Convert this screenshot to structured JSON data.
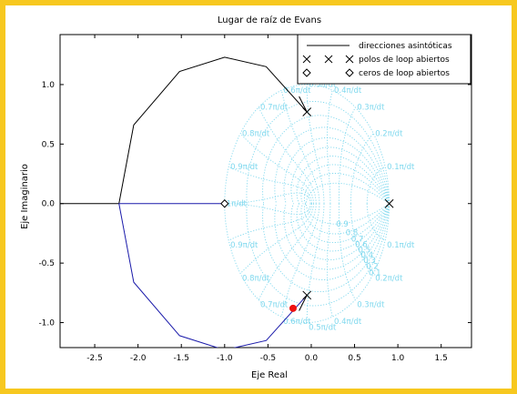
{
  "chart_data": {
    "type": "line",
    "title": "Lugar de raíz de Evans",
    "xlabel": "Eje Real",
    "ylabel": "Eje Imaginario",
    "xlim": [
      -2.9,
      1.85
    ],
    "ylim": [
      -1.21,
      1.42
    ],
    "xticks": [
      "-2.5",
      "-2.0",
      "-1.5",
      "-1.0",
      "-0.5",
      "0.0",
      "0.5",
      "1.0",
      "1.5"
    ],
    "xtick_values": [
      -2.5,
      -2.0,
      -1.5,
      -1.0,
      -0.5,
      0.0,
      0.5,
      1.0,
      1.5
    ],
    "yticks": [
      "1.0",
      "0.5",
      "0.0",
      "-0.5",
      "-1.0"
    ],
    "ytick_values": [
      1.0,
      0.5,
      0.0,
      -0.5,
      -1.0
    ],
    "legend": {
      "placement": "top-right",
      "entries": [
        "direcciones asintóticas",
        "polos de loop abiertos",
        "ceros de loop abiertos"
      ]
    },
    "series": [
      {
        "role": "root locus upper branch",
        "color": "#000000",
        "points": [
          [
            -0.05,
            0.77
          ],
          [
            -0.52,
            1.15
          ],
          [
            -1.0,
            1.23
          ],
          [
            -1.52,
            1.11
          ],
          [
            -2.05,
            0.66
          ],
          [
            -2.22,
            0.0
          ],
          [
            -3.5,
            0.0
          ]
        ]
      },
      {
        "role": "root locus lower branch",
        "color": "#1a1aaa",
        "points": [
          [
            -0.05,
            -0.77
          ],
          [
            -0.52,
            -1.15
          ],
          [
            -1.0,
            -1.23
          ],
          [
            -1.52,
            -1.11
          ],
          [
            -2.05,
            -0.66
          ],
          [
            -2.22,
            0.0
          ],
          [
            -1.0,
            0.0
          ]
        ]
      },
      {
        "role": "asymptote",
        "color": "#000000",
        "points": [
          [
            -0.05,
            0.77
          ],
          [
            -0.14,
            0.9
          ]
        ]
      },
      {
        "role": "asymptote",
        "color": "#000000",
        "points": [
          [
            -0.05,
            -0.77
          ],
          [
            -0.14,
            -0.9
          ]
        ]
      }
    ],
    "open_loop_poles": [
      [
        0.9,
        0.0
      ],
      [
        -0.05,
        0.77
      ],
      [
        -0.05,
        -0.77
      ]
    ],
    "open_loop_zeros": [
      [
        -1.0,
        0.0
      ]
    ],
    "selected_point": {
      "x": -0.21,
      "y": -0.88,
      "color": "#ee1111"
    },
    "grid": {
      "type": "zgrid",
      "color": "#7fd8ee",
      "damping_labels": [
        "0.1",
        "0.2",
        "0.3",
        "0.4",
        "0.5",
        "0.6",
        "0.7",
        "0.8",
        "0.9"
      ],
      "natural_frequency_labels": [
        "0.1π/dt",
        "0.2π/dt",
        "0.3π/dt",
        "0.4π/dt",
        "0.5π/dt",
        "0.6π/dt",
        "0.7π/dt",
        "0.8π/dt",
        "0.9π/dt",
        "1π/dt"
      ]
    },
    "grid_lines": true
  }
}
